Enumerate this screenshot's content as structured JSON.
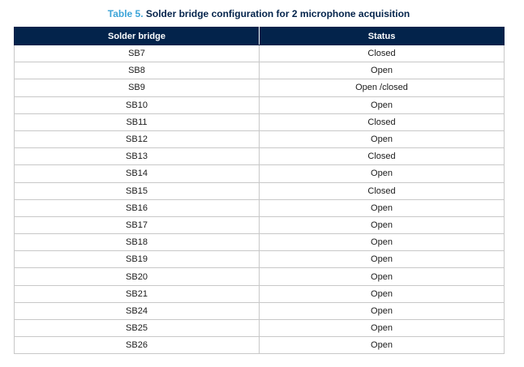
{
  "caption": {
    "label": "Table 5.",
    "text": "Solder bridge configuration for 2 microphone acquisition"
  },
  "table": {
    "header": [
      "Solder bridge",
      "Status"
    ],
    "rows": [
      [
        "SB7",
        "Closed"
      ],
      [
        "SB8",
        "Open"
      ],
      [
        "SB9",
        "Open /closed"
      ],
      [
        "SB10",
        "Open"
      ],
      [
        "SB11",
        "Closed"
      ],
      [
        "SB12",
        "Open"
      ],
      [
        "SB13",
        "Closed"
      ],
      [
        "SB14",
        "Open"
      ],
      [
        "SB15",
        "Closed"
      ],
      [
        "SB16",
        "Open"
      ],
      [
        "SB17",
        "Open"
      ],
      [
        "SB18",
        "Open"
      ],
      [
        "SB19",
        "Open"
      ],
      [
        "SB20",
        "Open"
      ],
      [
        "SB21",
        "Open"
      ],
      [
        "SB24",
        "Open"
      ],
      [
        "SB25",
        "Open"
      ],
      [
        "SB26",
        "Open"
      ]
    ]
  }
}
